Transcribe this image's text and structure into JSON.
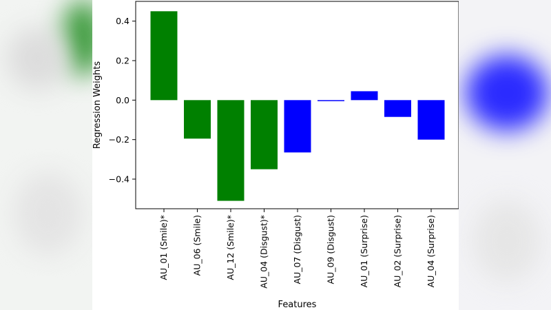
{
  "colors": {
    "green": "#008000",
    "blue": "#0000ff",
    "axis": "#000000"
  },
  "chart_data": {
    "type": "bar",
    "title": "",
    "xlabel": "Features",
    "ylabel": "Regression Weights",
    "ylim": [
      -0.55,
      0.5
    ],
    "yticks": [
      0.4,
      0.2,
      0.0,
      -0.2,
      -0.4
    ],
    "ytick_labels": [
      "0.4",
      "0.2",
      "0.0",
      "−0.2",
      "−0.4"
    ],
    "grid": false,
    "categories": [
      "AU_01 (Smile)*",
      "AU_06 (Smile)",
      "AU_12 (Smile)*",
      "AU_04 (Disgust)*",
      "AU_07 (Disgust)",
      "AU_09 (Disgust)",
      "AU_01 (Surprise)",
      "AU_02 (Surprise)",
      "AU_04 (Surprise)"
    ],
    "values": [
      0.45,
      -0.195,
      -0.51,
      -0.35,
      -0.265,
      -0.005,
      0.045,
      -0.085,
      -0.2
    ],
    "bar_colors": [
      "green",
      "green",
      "green",
      "green",
      "blue",
      "blue",
      "blue",
      "blue",
      "blue"
    ]
  }
}
